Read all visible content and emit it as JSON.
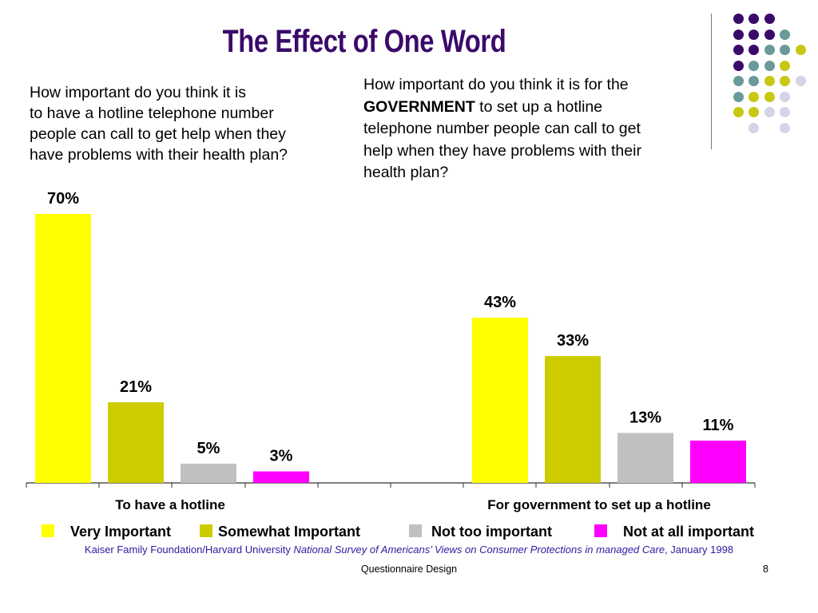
{
  "title": "The Effect of One Word",
  "question1": {
    "lines": [
      "How important do you think it is",
      "to have a hotline telephone number",
      "people can call to get help when they",
      "have problems with their health plan?"
    ]
  },
  "question2": {
    "line1": "How important do you think it is for the",
    "bold_word": "GOVERNMENT",
    "line2_rest": " to set up a hotline",
    "line3": "telephone number people can call to get",
    "line4": "help when they have problems with their",
    "line5": "health plan?"
  },
  "chart_data": {
    "type": "bar",
    "categories": [
      "To have a hotline",
      "For government to set up a hotline"
    ],
    "series": [
      {
        "name": "Very Important",
        "values": [
          70,
          43
        ],
        "labels": [
          "70%",
          "43%"
        ],
        "color": "#ffff00"
      },
      {
        "name": "Somewhat Important",
        "values": [
          21,
          33
        ],
        "labels": [
          "21%",
          "33%"
        ],
        "color": "#cccc00"
      },
      {
        "name": "Not too important",
        "values": [
          5,
          13
        ],
        "labels": [
          "5%",
          "13%"
        ],
        "color": "#c0c0c0"
      },
      {
        "name": "Not at all important",
        "values": [
          3,
          11
        ],
        "labels": [
          "3%",
          "11%"
        ],
        "color": "#ff00ff"
      }
    ],
    "ylim": [
      0,
      70
    ],
    "grid": false,
    "legend_position": "bottom"
  },
  "source": {
    "prefix": "Kaiser Family Foundation/Harvard University ",
    "italic": "National Survey of Americans’ Views on Consumer Protections in managed Care",
    "suffix": ", January 1998"
  },
  "footer": {
    "text": "Questionnaire Design",
    "page": "8"
  },
  "decoration": {
    "dot_colors": {
      "purple": "#3a0a6b",
      "teal": "#6a9a9a",
      "olive": "#c8c814",
      "lavender": "#d4d4e8"
    }
  }
}
